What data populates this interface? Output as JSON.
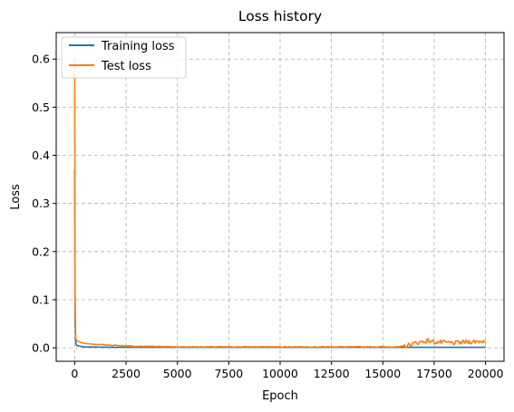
{
  "chart_data": {
    "type": "line",
    "title": "Loss history",
    "xlabel": "Epoch",
    "ylabel": "Loss",
    "xlim": [
      -900,
      20900
    ],
    "ylim": [
      -0.028,
      0.655
    ],
    "xticks": [
      0,
      2500,
      5000,
      7500,
      10000,
      12500,
      15000,
      17500,
      20000
    ],
    "xtick_labels": [
      "0",
      "2500",
      "5000",
      "7500",
      "10000",
      "12500",
      "15000",
      "17500",
      "20000"
    ],
    "yticks": [
      0.0,
      0.1,
      0.2,
      0.3,
      0.4,
      0.5,
      0.6
    ],
    "ytick_labels": [
      "0.0",
      "0.1",
      "0.2",
      "0.3",
      "0.4",
      "0.5",
      "0.6"
    ],
    "grid": true,
    "legend_position": "top-left",
    "series": [
      {
        "name": "Training loss",
        "color": "#1f77b4",
        "x": [
          0,
          20,
          50,
          100,
          200,
          300,
          500,
          1000,
          2000,
          3000,
          5000,
          10000,
          15000,
          16000,
          17000,
          18000,
          19000,
          20000
        ],
        "y": [
          0.37,
          0.05,
          0.01,
          0.005,
          0.004,
          0.003,
          0.002,
          0.0015,
          0.001,
          0.001,
          0.001,
          0.001,
          0.001,
          0.001,
          0.001,
          0.001,
          0.001,
          0.001
        ]
      },
      {
        "name": "Test loss",
        "color": "#ff7f0e",
        "x": [
          0,
          20,
          50,
          100,
          200,
          300,
          500,
          800,
          1000,
          1500,
          2000,
          3000,
          4000,
          5000,
          7500,
          10000,
          12500,
          15000,
          15800,
          16200,
          16600,
          17000,
          17200,
          17500,
          18000,
          18500,
          19000,
          19500,
          20000
        ],
        "y": [
          0.6,
          0.1,
          0.02,
          0.014,
          0.013,
          0.011,
          0.009,
          0.008,
          0.007,
          0.006,
          0.005,
          0.003,
          0.003,
          0.002,
          0.002,
          0.002,
          0.002,
          0.002,
          0.002,
          0.005,
          0.01,
          0.013,
          0.015,
          0.012,
          0.011,
          0.01,
          0.012,
          0.013,
          0.014
        ]
      }
    ]
  }
}
